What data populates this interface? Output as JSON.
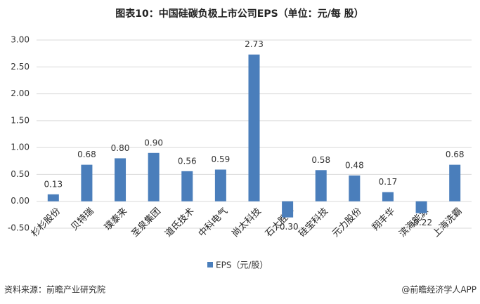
{
  "chart_data": {
    "type": "bar",
    "title": "图表10：中国硅碳负极上市公司EPS（单位：元/每 股）",
    "categories": [
      "杉杉股份",
      "贝特瑞",
      "璞泰来",
      "圣泉集团",
      "道氏技术",
      "中科电气",
      "尚太科技",
      "石大胜华",
      "硅宝科技",
      "元力股份",
      "翔丰华",
      "滨海能源",
      "上海洗霸"
    ],
    "series": [
      {
        "name": "EPS（元/股）",
        "color": "#4a7ebb",
        "values": [
          0.13,
          0.68,
          0.8,
          0.9,
          0.56,
          0.59,
          2.73,
          -0.3,
          0.58,
          0.48,
          0.17,
          -0.22,
          0.68
        ],
        "value_labels": [
          "0.13",
          "0.68",
          "0.80",
          "0.90",
          "0.56",
          "0.59",
          "2.73",
          "-0.30",
          "0.58",
          "0.48",
          "0.17",
          "-0.22",
          "0.68"
        ]
      }
    ],
    "ylim": [
      -0.5,
      3.0
    ],
    "yticks": [
      {
        "value": -0.5,
        "label": "-0.50"
      },
      {
        "value": 0,
        "label": "0.00"
      },
      {
        "value": 0.5,
        "label": "0.50"
      },
      {
        "value": 1.0,
        "label": "1.00"
      },
      {
        "value": 1.5,
        "label": "1.50"
      },
      {
        "value": 2.0,
        "label": "2.00"
      },
      {
        "value": 2.5,
        "label": "2.50"
      },
      {
        "value": 3.0,
        "label": "3.00"
      }
    ],
    "grid": true,
    "legend": "bottom",
    "source": "资料来源：前瞻产业研究院",
    "credit": "@前瞻经济学人APP"
  }
}
